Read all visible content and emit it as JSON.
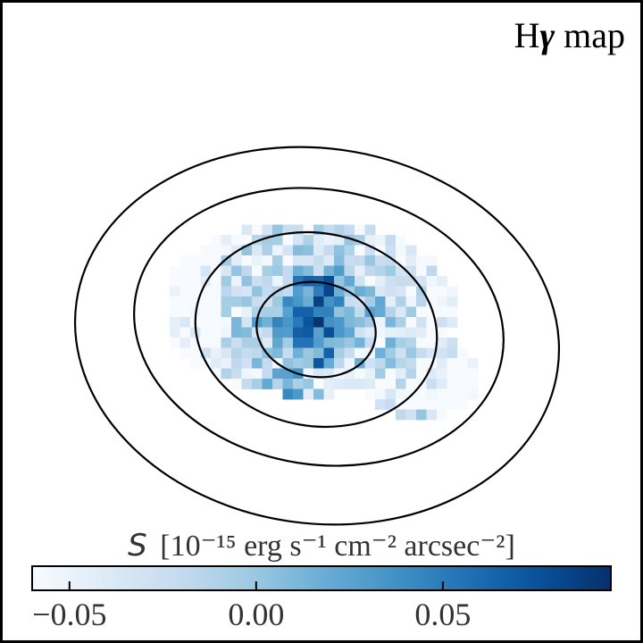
{
  "chart_data": {
    "type": "heatmap",
    "title": {
      "prefix": "H",
      "greek": "γ",
      "suffix": " map"
    },
    "colorbar": {
      "label": "S [10⁻¹⁵ erg s⁻¹ cm⁻² arcsec⁻²]",
      "label_symbol": "S",
      "label_units": "[10⁻¹⁵ erg s⁻¹ cm⁻² arcsec⁻²]",
      "range": [
        -0.06,
        0.095
      ],
      "ticks": [
        {
          "value": -0.05,
          "label": "−0.05"
        },
        {
          "value": 0.0,
          "label": "0.00"
        },
        {
          "value": 0.05,
          "label": "0.05"
        }
      ],
      "colormap": [
        "#f7fbff",
        "#deebf7",
        "#c6dbef",
        "#9ecae1",
        "#6baed6",
        "#4292c6",
        "#2171b5",
        "#08519c",
        "#08306b"
      ]
    },
    "contours": {
      "count": 4,
      "color": "#000000"
    }
  }
}
